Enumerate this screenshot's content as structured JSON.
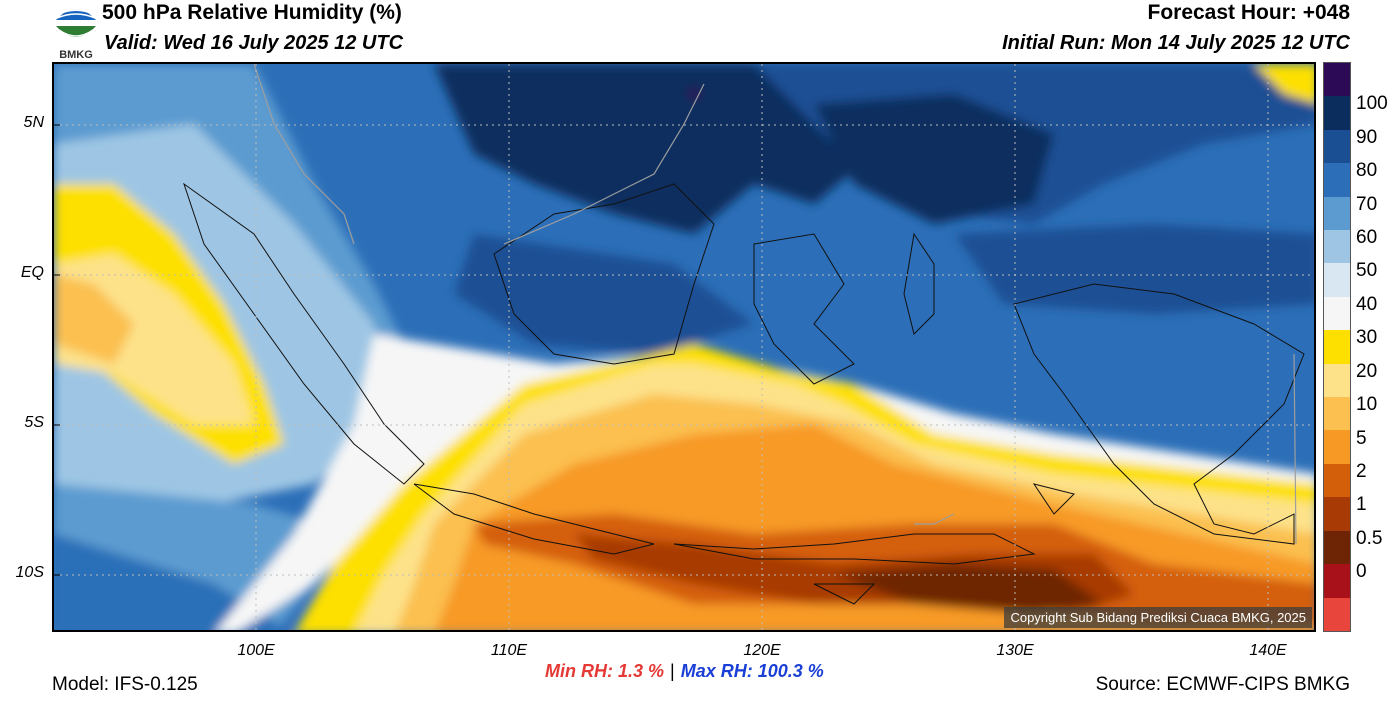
{
  "header": {
    "title": "500 hPa Relative Humidity (%)",
    "valid": "Valid: Wed 16 July 2025 12 UTC",
    "forecast_hour": "Forecast Hour: +048",
    "initial_run": "Initial Run: Mon 14 July 2025 12 UTC"
  },
  "logo": {
    "text": "BMKG"
  },
  "axes": {
    "lat_labels": [
      "5N",
      "EQ",
      "5S",
      "10S"
    ],
    "lon_labels": [
      "100E",
      "110E",
      "120E",
      "130E",
      "140E"
    ]
  },
  "colorbar": {
    "labels": [
      "100",
      "90",
      "80",
      "70",
      "60",
      "50",
      "40",
      "30",
      "20",
      "10",
      "5",
      "2",
      "1",
      "0.5",
      "0"
    ],
    "colors": [
      "#2d0a55",
      "#0b2d5e",
      "#1a4f94",
      "#2c6fb8",
      "#5b9bd0",
      "#9ec6e4",
      "#d8e7f2",
      "#f6f6f6",
      "#fde000",
      "#fde28a",
      "#fbc04f",
      "#f79a25",
      "#d45f0a",
      "#a83a06",
      "#6e2506",
      "#a8101a",
      "#e8453c"
    ]
  },
  "stats": {
    "min_label": "Min RH:   1.3 %",
    "separator": "|",
    "max_label": "Max RH: 100.3 %"
  },
  "footer": {
    "model": "Model: IFS-0.125",
    "source": "Source: ECMWF-CIPS BMKG",
    "copyright": "Copyright Sub Bidang Prediksi Cuaca BMKG, 2025"
  }
}
